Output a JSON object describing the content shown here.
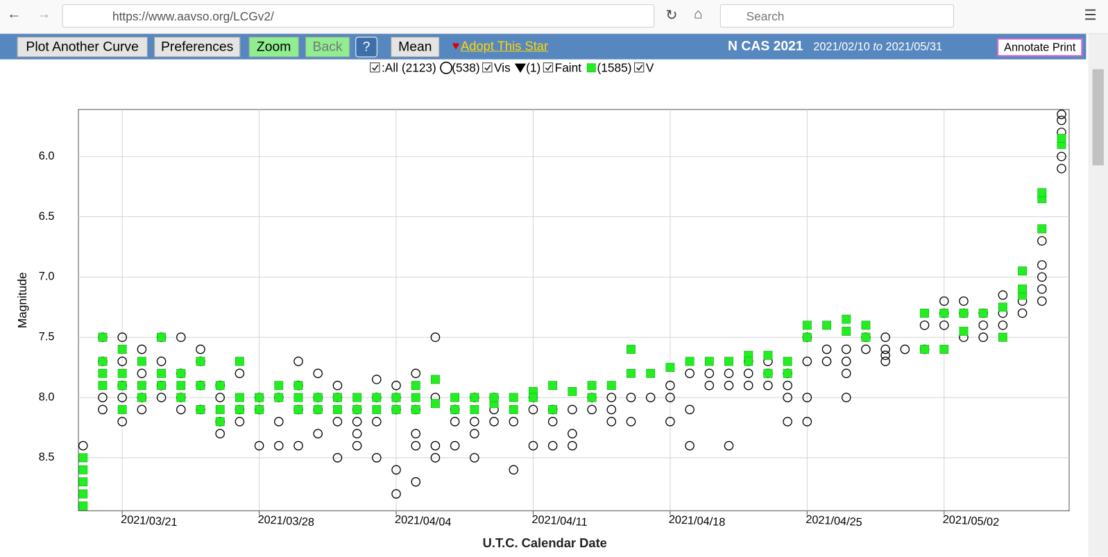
{
  "browser": {
    "url": "https://www.aavso.org/LCGv2/",
    "search": "Search"
  },
  "toolbar": {
    "buttons": [
      "Plot Another Curve",
      "Preferences",
      "Zoom",
      "Back",
      "?",
      "Mean"
    ],
    "adopt": "Adopt This Star",
    "star": "N CAS 2021",
    "date_from": "2021/02/10",
    "to": "to",
    "date_to": "2021/05/31",
    "annotate": "Annotate Print"
  },
  "legend": {
    "all": {
      "value": 2123,
      "label": ":All (2123)"
    }
  },
  "chart_data": {
    "type": "scatter",
    "xlabel": "U.T.C. Calendar Date",
    "ylabel": "Magnitude",
    "grid": true,
    "xlim": [
      "2021/03/18 18:17",
      "2021/05/08 09:21"
    ],
    "xticks": [
      "2021/03/21",
      "2021/03/28",
      "2021/04/04",
      "2021/04/11",
      "2021/04/18",
      "2021/04/25",
      "2021/05/02"
    ],
    "ylim": [
      8.94,
      5.61
    ],
    "yticks": [
      {
        "value": 6,
        "label": "6.0"
      },
      6.5,
      {
        "value": 7,
        "label": "7.0"
      },
      7.5,
      {
        "value": 8,
        "label": "8.0"
      },
      8.5
    ],
    "series": [
      {
        "name": "Vis",
        "marker": "circle",
        "color": "#000000",
        "count": {
          "value": 538,
          "label": "(538)"
        },
        "x": [
          "2021/03/19",
          "2021/03/20",
          "2021/03/20",
          "2021/03/20",
          "2021/03/20",
          "2021/03/21",
          "2021/03/21",
          "2021/03/21",
          "2021/03/21",
          "2021/03/21",
          "2021/03/22",
          "2021/03/22",
          "2021/03/22",
          "2021/03/22",
          "2021/03/23",
          "2021/03/23",
          "2021/03/23",
          "2021/03/23",
          "2021/03/24",
          "2021/03/24",
          "2021/03/24",
          "2021/03/24",
          "2021/03/25",
          "2021/03/25",
          "2021/03/25",
          "2021/03/25",
          "2021/03/26",
          "2021/03/26",
          "2021/03/26",
          "2021/03/26",
          "2021/03/27",
          "2021/03/27",
          "2021/03/27",
          "2021/03/28",
          "2021/03/28",
          "2021/03/28",
          "2021/03/29",
          "2021/03/29",
          "2021/03/29",
          "2021/03/30",
          "2021/03/30",
          "2021/03/30",
          "2021/03/30",
          "2021/03/31",
          "2021/03/31",
          "2021/03/31",
          "2021/03/31",
          "2021/04/01",
          "2021/04/01",
          "2021/04/01",
          "2021/04/01",
          "2021/04/02",
          "2021/04/02",
          "2021/04/02",
          "2021/04/02",
          "2021/04/03",
          "2021/04/03",
          "2021/04/03",
          "2021/04/03",
          "2021/04/04",
          "2021/04/04",
          "2021/04/04",
          "2021/04/04",
          "2021/04/04",
          "2021/04/05",
          "2021/04/05",
          "2021/04/05",
          "2021/04/05",
          "2021/04/05",
          "2021/04/06",
          "2021/04/06",
          "2021/04/06",
          "2021/04/06",
          "2021/04/07",
          "2021/04/07",
          "2021/04/07",
          "2021/04/08",
          "2021/04/08",
          "2021/04/08",
          "2021/04/08",
          "2021/04/09",
          "2021/04/09",
          "2021/04/09",
          "2021/04/10",
          "2021/04/10",
          "2021/04/11",
          "2021/04/11",
          "2021/04/11",
          "2021/04/12",
          "2021/04/12",
          "2021/04/12",
          "2021/04/13",
          "2021/04/13",
          "2021/04/13",
          "2021/04/14",
          "2021/04/14",
          "2021/04/15",
          "2021/04/15",
          "2021/04/15",
          "2021/04/16",
          "2021/04/16",
          "2021/04/17",
          "2021/04/18",
          "2021/04/18",
          "2021/04/18",
          "2021/04/19",
          "2021/04/19",
          "2021/04/19",
          "2021/04/20",
          "2021/04/20",
          "2021/04/21",
          "2021/04/21",
          "2021/04/21",
          "2021/04/22",
          "2021/04/22",
          "2021/04/22",
          "2021/04/23",
          "2021/04/23",
          "2021/04/23",
          "2021/04/24",
          "2021/04/24",
          "2021/04/24",
          "2021/04/24",
          "2021/04/25",
          "2021/04/25",
          "2021/04/25",
          "2021/04/25",
          "2021/04/26",
          "2021/04/26",
          "2021/04/27",
          "2021/04/27",
          "2021/04/27",
          "2021/04/27",
          "2021/04/28",
          "2021/04/28",
          "2021/04/29",
          "2021/04/29",
          "2021/04/29",
          "2021/04/29",
          "2021/04/30",
          "2021/05/01",
          "2021/05/01",
          "2021/05/02",
          "2021/05/02",
          "2021/05/02",
          "2021/05/03",
          "2021/05/03",
          "2021/05/03",
          "2021/05/04",
          "2021/05/04",
          "2021/05/04",
          "2021/05/05",
          "2021/05/05",
          "2021/05/05",
          "2021/05/06",
          "2021/05/06",
          "2021/05/07",
          "2021/05/07",
          "2021/05/07",
          "2021/05/07",
          "2021/05/07",
          "2021/05/08",
          "2021/05/08",
          "2021/05/08",
          "2021/05/08",
          "2021/05/08"
        ],
        "values": [
          8.4,
          8.1,
          7.5,
          7.7,
          8.0,
          7.5,
          7.7,
          8.2,
          8.0,
          7.9,
          7.6,
          8.1,
          7.8,
          8.0,
          7.7,
          7.9,
          8.0,
          7.5,
          7.5,
          7.8,
          8.1,
          8.0,
          7.6,
          7.9,
          8.1,
          7.7,
          8.2,
          7.9,
          8.0,
          8.3,
          7.8,
          8.1,
          8.2,
          8.4,
          8.0,
          8.1,
          8.2,
          8.4,
          8.0,
          7.7,
          7.9,
          8.1,
          8.4,
          7.8,
          8.1,
          8.3,
          8.0,
          8.5,
          8.0,
          7.9,
          8.2,
          8.1,
          8.3,
          8.2,
          8.4,
          7.85,
          8.2,
          8.0,
          8.5,
          8.6,
          8.8,
          8.0,
          8.1,
          7.9,
          8.7,
          7.8,
          8.3,
          8.4,
          8.1,
          7.5,
          8.5,
          8.0,
          8.4,
          8.1,
          8.4,
          8.2,
          8.5,
          8.2,
          8.0,
          8.3,
          8.2,
          8.0,
          8.1,
          8.6,
          8.2,
          8.4,
          8.1,
          8.0,
          8.4,
          8.1,
          8.2,
          8.4,
          8.1,
          8.3,
          8.1,
          8.0,
          8.2,
          8.0,
          8.1,
          8.0,
          8.2,
          8.0,
          8.0,
          7.9,
          8.2,
          8.4,
          8.1,
          7.8,
          7.9,
          7.8,
          7.9,
          8.4,
          7.8,
          7.8,
          7.9,
          7.7,
          7.9,
          7.8,
          7.7,
          8.2,
          8.0,
          7.8,
          7.9,
          8.0,
          7.7,
          7.5,
          8.2,
          7.7,
          7.6,
          8.0,
          7.7,
          7.6,
          7.8,
          7.5,
          7.6,
          7.7,
          7.5,
          7.6,
          7.65,
          7.6,
          7.6,
          7.4,
          7.3,
          7.4,
          7.2,
          7.2,
          7.5,
          7.3,
          7.3,
          7.5,
          7.4,
          7.15,
          7.4,
          7.3,
          7.2,
          7.3,
          7.1,
          6.9,
          6.7,
          7.2,
          7.0,
          6.0,
          5.8,
          5.7,
          5.65,
          6.1
        ]
      },
      {
        "name": "Faint",
        "marker": "triangle",
        "color": "#000000",
        "count": {
          "value": 1,
          "label": "(1)"
        },
        "x": [],
        "values": []
      },
      {
        "name": "V",
        "marker": "square",
        "color": "#22ee22",
        "count": {
          "value": 1585,
          "label": "(1585)"
        },
        "x": [
          "2021/03/19",
          "2021/03/19",
          "2021/03/19",
          "2021/03/19",
          "2021/03/19",
          "2021/03/20",
          "2021/03/20",
          "2021/03/20",
          "2021/03/20",
          "2021/03/21",
          "2021/03/21",
          "2021/03/21",
          "2021/03/21",
          "2021/03/22",
          "2021/03/22",
          "2021/03/22",
          "2021/03/23",
          "2021/03/23",
          "2021/03/23",
          "2021/03/24",
          "2021/03/24",
          "2021/03/24",
          "2021/03/25",
          "2021/03/25",
          "2021/03/25",
          "2021/03/26",
          "2021/03/26",
          "2021/03/26",
          "2021/03/27",
          "2021/03/27",
          "2021/03/27",
          "2021/03/28",
          "2021/03/28",
          "2021/03/29",
          "2021/03/29",
          "2021/03/30",
          "2021/03/30",
          "2021/03/30",
          "2021/03/31",
          "2021/03/31",
          "2021/04/01",
          "2021/04/01",
          "2021/04/02",
          "2021/04/02",
          "2021/04/03",
          "2021/04/03",
          "2021/04/04",
          "2021/04/04",
          "2021/04/05",
          "2021/04/05",
          "2021/04/05",
          "2021/04/06",
          "2021/04/06",
          "2021/04/07",
          "2021/04/07",
          "2021/04/08",
          "2021/04/08",
          "2021/04/09",
          "2021/04/09",
          "2021/04/10",
          "2021/04/10",
          "2021/04/11",
          "2021/04/11",
          "2021/04/12",
          "2021/04/12",
          "2021/04/13",
          "2021/04/14",
          "2021/04/14",
          "2021/04/15",
          "2021/04/16",
          "2021/04/16",
          "2021/04/17",
          "2021/04/18",
          "2021/04/19",
          "2021/04/20",
          "2021/04/21",
          "2021/04/22",
          "2021/04/22",
          "2021/04/23",
          "2021/04/23",
          "2021/04/24",
          "2021/04/24",
          "2021/04/25",
          "2021/04/25",
          "2021/04/26",
          "2021/04/27",
          "2021/04/27",
          "2021/04/28",
          "2021/04/28",
          "2021/05/01",
          "2021/05/01",
          "2021/05/02",
          "2021/05/02",
          "2021/05/03",
          "2021/05/03",
          "2021/05/04",
          "2021/05/05",
          "2021/05/05",
          "2021/05/06",
          "2021/05/06",
          "2021/05/06",
          "2021/05/07",
          "2021/05/07",
          "2021/05/07",
          "2021/05/08",
          "2021/05/08"
        ],
        "values": [
          8.9,
          8.7,
          8.5,
          8.8,
          8.6,
          7.9,
          7.7,
          7.5,
          7.8,
          7.6,
          8.1,
          7.9,
          7.8,
          7.7,
          7.9,
          8.0,
          7.8,
          7.5,
          7.9,
          7.8,
          7.9,
          8.0,
          7.7,
          8.1,
          7.9,
          7.9,
          8.1,
          8.2,
          7.7,
          8.0,
          8.1,
          8.0,
          8.1,
          7.9,
          8.0,
          8.0,
          8.1,
          7.9,
          8.1,
          8.0,
          8.1,
          8.0,
          8.0,
          8.1,
          8.0,
          8.1,
          8.0,
          8.1,
          7.9,
          8.1,
          8.0,
          7.85,
          8.05,
          8.1,
          8.0,
          8.0,
          8.1,
          8.05,
          8.0,
          8.0,
          8.1,
          7.95,
          8.0,
          8.1,
          7.9,
          7.95,
          7.9,
          8.0,
          7.9,
          7.8,
          7.6,
          7.8,
          7.75,
          7.7,
          7.7,
          7.7,
          7.65,
          7.7,
          7.65,
          7.8,
          7.7,
          7.8,
          7.5,
          7.4,
          7.4,
          7.45,
          7.35,
          7.4,
          7.5,
          7.3,
          7.6,
          7.3,
          7.6,
          7.3,
          7.45,
          7.3,
          7.25,
          7.5,
          7.15,
          7.1,
          6.95,
          6.6,
          6.35,
          6.3,
          5.9,
          5.85
        ]
      }
    ]
  }
}
